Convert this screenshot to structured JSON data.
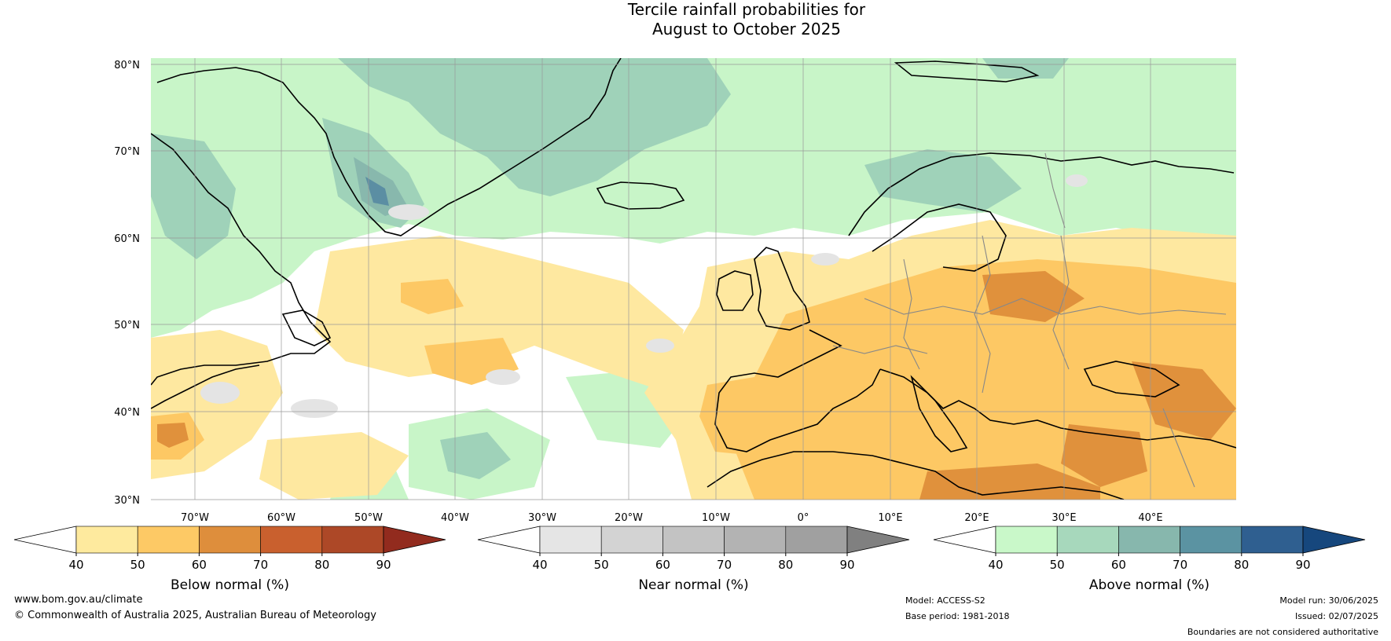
{
  "title": {
    "line1": "Tercile rainfall probabilities for",
    "line2": "August to October 2025"
  },
  "map": {
    "lat_labels": [
      "80°N",
      "70°N",
      "60°N",
      "50°N",
      "40°N",
      "30°N"
    ],
    "lon_labels": [
      "70°W",
      "60°W",
      "50°W",
      "40°W",
      "30°W",
      "20°W",
      "10°W",
      "0°",
      "10°E",
      "20°E",
      "30°E",
      "40°E"
    ],
    "colors": {
      "ocean_base": "#ffffff",
      "below_40": "#fee8a0",
      "below_50": "#fdc864",
      "below_60": "#e0913c",
      "near_40": "#e4e4e4",
      "above_40": "#c8f5c8",
      "above_50": "#9fd2b9",
      "above_60": "#88b8ad",
      "above_70": "#5b8ea3",
      "coastline": "#000000",
      "border": "#888888",
      "grid": "#999999"
    }
  },
  "colorbars": [
    {
      "label": "Below normal (%)",
      "ticks": [
        "40",
        "50",
        "60",
        "70",
        "80",
        "90"
      ],
      "colors": [
        "#ffffff",
        "#feea9e",
        "#fdc965",
        "#de8e3c",
        "#c9602e",
        "#ad4827",
        "#922b1e"
      ]
    },
    {
      "label": "Near normal (%)",
      "ticks": [
        "40",
        "50",
        "60",
        "70",
        "80",
        "90"
      ],
      "colors": [
        "#ffffff",
        "#e5e5e5",
        "#d3d3d3",
        "#c3c3c3",
        "#b3b3b3",
        "#a0a0a0",
        "#808080"
      ]
    },
    {
      "label": "Above normal (%)",
      "ticks": [
        "40",
        "50",
        "60",
        "70",
        "80",
        "90"
      ],
      "colors": [
        "#ffffff",
        "#c9f8c9",
        "#a7d8bc",
        "#87b7ad",
        "#5b93a2",
        "#2f5f90",
        "#16477d"
      ]
    }
  ],
  "footer": {
    "website": "www.bom.gov.au/climate",
    "copyright": "© Commonwealth of Australia 2025, Australian Bureau of Meteorology",
    "model": "Model: ACCESS-S2",
    "base_period": "Base period: 1981-2018",
    "model_run": "Model run: 30/06/2025",
    "issued": "Issued: 02/07/2025",
    "disclaimer": "Boundaries are not considered authoritative"
  }
}
